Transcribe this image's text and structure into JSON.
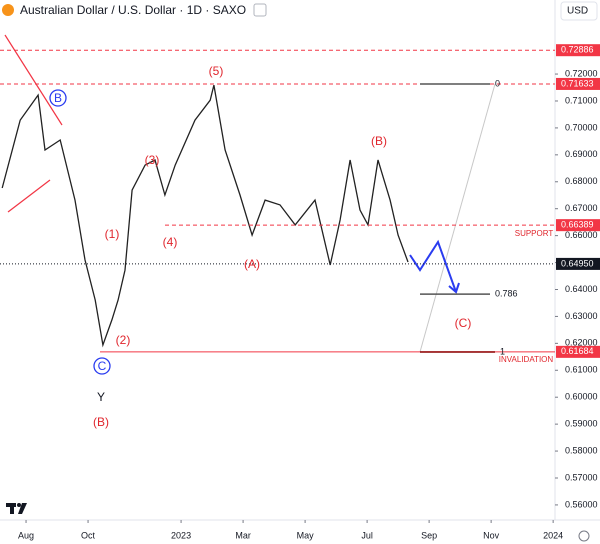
{
  "header": {
    "symbol": "Australian Dollar / U.S. Dollar · 1D · SAXO",
    "currency": "USD"
  },
  "chart_data": {
    "type": "line",
    "color": "#222222",
    "x": [
      -0.77,
      -0.19,
      0.39,
      0.61,
      1.1,
      1.58,
      1.9,
      2.23,
      2.48,
      2.77,
      2.97,
      3.19,
      3.42,
      3.84,
      4.16,
      4.48,
      4.81,
      5.45,
      5.94,
      6.06,
      6.42,
      6.9,
      7.29,
      7.71,
      8.19,
      8.68,
      9.32,
      9.81,
      10.13,
      10.45,
      10.77,
      11.03,
      11.35,
      11.74,
      12,
      12.32
    ],
    "values": [
      0.6777,
      0.7029,
      0.7122,
      0.6918,
      0.6955,
      0.6732,
      0.651,
      0.6361,
      0.6194,
      0.6287,
      0.6361,
      0.6472,
      0.6769,
      0.6862,
      0.6881,
      0.6751,
      0.6862,
      0.7029,
      0.7103,
      0.7159,
      0.6918,
      0.6751,
      0.6602,
      0.6732,
      0.6714,
      0.664,
      0.6732,
      0.6491,
      0.6658,
      0.6881,
      0.6695,
      0.664,
      0.6881,
      0.6732,
      0.6602,
      0.6502
    ],
    "xlim": [
      -0.84,
      17.06
    ],
    "xticks": [
      {
        "value": 0,
        "label": "Aug"
      },
      {
        "value": 2,
        "label": "Oct"
      },
      {
        "value": 5,
        "label": "2023"
      },
      {
        "value": 7,
        "label": "Mar"
      },
      {
        "value": 9,
        "label": "May"
      },
      {
        "value": 11,
        "label": "Jul"
      },
      {
        "value": 13,
        "label": "Sep"
      },
      {
        "value": 15,
        "label": "Nov"
      },
      {
        "value": 17,
        "label": "2024"
      }
    ],
    "ylim": [
      0.5544,
      0.7475
    ],
    "yticks": [
      {
        "value": 0.56,
        "label": "0.56000"
      },
      {
        "value": 0.57,
        "label": "0.57000"
      },
      {
        "value": 0.58,
        "label": "0.58000"
      },
      {
        "value": 0.59,
        "label": "0.59000"
      },
      {
        "value": 0.6,
        "label": "0.60000"
      },
      {
        "value": 0.61,
        "label": "0.61000"
      },
      {
        "value": 0.62,
        "label": "0.62000"
      },
      {
        "value": 0.63,
        "label": "0.63000"
      },
      {
        "value": 0.64,
        "label": "0.64000"
      },
      {
        "value": 0.65,
        "label": "0.65000"
      },
      {
        "value": 0.66,
        "label": "0.66000"
      },
      {
        "value": 0.67,
        "label": "0.67000"
      },
      {
        "value": 0.68,
        "label": "0.68000"
      },
      {
        "value": 0.69,
        "label": "0.69000"
      },
      {
        "value": 0.7,
        "label": "0.70000"
      },
      {
        "value": 0.71,
        "label": "0.71000"
      },
      {
        "value": 0.72,
        "label": "0.72000"
      }
    ],
    "levels": [
      {
        "value": 0.72886,
        "label": "0.72886",
        "color": "#f23645",
        "style": "dashed"
      },
      {
        "value": 0.71633,
        "label": "0.71633",
        "color": "#f23645",
        "style": "dashed"
      },
      {
        "value": 0.66389,
        "label": "0.66389",
        "color": "#f23645",
        "style": "dashed"
      },
      {
        "value": 0.6495,
        "label": "0.64950",
        "color": "#131722",
        "style": "dotted"
      },
      {
        "value": 0.61684,
        "label": "0.61684",
        "color": "#f23645",
        "style": "solid"
      }
    ],
    "fib_levels": [
      {
        "ratio": 0,
        "price": 0.7163
      },
      {
        "ratio": 0.786,
        "price": 0.6383
      },
      {
        "ratio": 1,
        "price": 0.6168
      }
    ],
    "annotations": [
      {
        "text": "B",
        "color": "#2a3cf0"
      },
      {
        "text": "(5)",
        "color": "#e0262d"
      },
      {
        "text": "(B)",
        "color": "#e0262d"
      },
      {
        "text": "(3)",
        "color": "#e0262d"
      },
      {
        "text": "(1)",
        "color": "#e0262d"
      },
      {
        "text": "(4)",
        "color": "#e0262d"
      },
      {
        "text": "(A)",
        "color": "#e0262d"
      },
      {
        "text": "(2)",
        "color": "#e0262d"
      },
      {
        "text": "C",
        "color": "#2a3cf0"
      },
      {
        "text": "Y",
        "color": "#131722"
      },
      {
        "text": "(B)",
        "color": "#e0262d"
      },
      {
        "text": "(C)",
        "color": "#e0262d"
      },
      {
        "text": "SUPPORT",
        "color": "#e0262d"
      },
      {
        "text": "INVALIDATION",
        "color": "#e0262d"
      }
    ]
  }
}
